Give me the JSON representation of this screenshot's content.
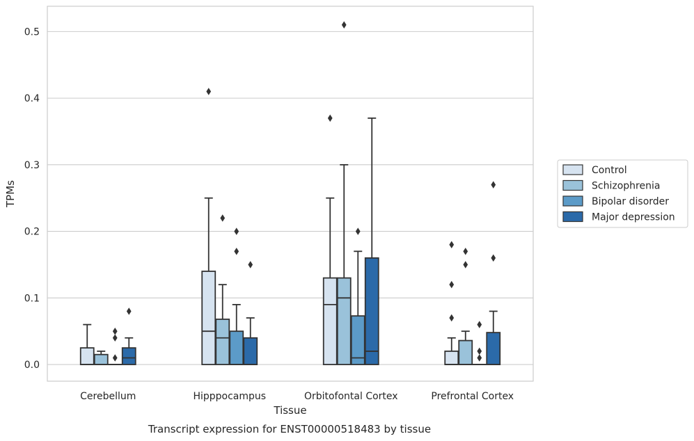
{
  "chart_data": {
    "type": "box",
    "title": "",
    "caption": "Transcript expression for ENST00000518483 by tissue",
    "xlabel": "Tissue",
    "ylabel": "TPMs",
    "ylim": [
      -0.025,
      0.538
    ],
    "yticks": [
      0.0,
      0.1,
      0.2,
      0.3,
      0.4,
      0.5
    ],
    "ytick_labels": [
      "0.0",
      "0.1",
      "0.2",
      "0.3",
      "0.4",
      "0.5"
    ],
    "grid": "horizontal",
    "legend_position": "right",
    "categories": [
      "Cerebellum",
      "Hipppocampus",
      "Orbitofontal Cortex",
      "Prefrontal Cortex"
    ],
    "series": [
      {
        "name": "Control",
        "color": "#d6e3f0",
        "boxes": [
          {
            "whisker_low": 0.0,
            "q1": 0.0,
            "median": 0.0,
            "q3": 0.025,
            "whisker_high": 0.06,
            "outliers": []
          },
          {
            "whisker_low": 0.0,
            "q1": 0.0,
            "median": 0.05,
            "q3": 0.14,
            "whisker_high": 0.25,
            "outliers": [
              0.41
            ]
          },
          {
            "whisker_low": 0.0,
            "q1": 0.0,
            "median": 0.09,
            "q3": 0.13,
            "whisker_high": 0.25,
            "outliers": [
              0.37
            ]
          },
          {
            "whisker_low": 0.0,
            "q1": 0.0,
            "median": 0.0,
            "q3": 0.02,
            "whisker_high": 0.04,
            "outliers": [
              0.07,
              0.12,
              0.18
            ]
          }
        ]
      },
      {
        "name": "Schizophrenia",
        "color": "#9ac2da",
        "boxes": [
          {
            "whisker_low": 0.0,
            "q1": 0.0,
            "median": 0.0,
            "q3": 0.015,
            "whisker_high": 0.02,
            "outliers": []
          },
          {
            "whisker_low": 0.0,
            "q1": 0.0,
            "median": 0.04,
            "q3": 0.068,
            "whisker_high": 0.12,
            "outliers": [
              0.22
            ]
          },
          {
            "whisker_low": 0.0,
            "q1": 0.0,
            "median": 0.1,
            "q3": 0.13,
            "whisker_high": 0.3,
            "outliers": [
              0.51
            ]
          },
          {
            "whisker_low": 0.0,
            "q1": 0.0,
            "median": 0.0,
            "q3": 0.036,
            "whisker_high": 0.05,
            "outliers": [
              0.15,
              0.17
            ]
          }
        ]
      },
      {
        "name": "Bipolar disorder",
        "color": "#5c9bc8",
        "boxes": [
          {
            "whisker_low": 0.0,
            "q1": 0.0,
            "median": 0.0,
            "q3": 0.0,
            "whisker_high": 0.0,
            "outliers": [
              0.01,
              0.04,
              0.05
            ]
          },
          {
            "whisker_low": 0.0,
            "q1": 0.0,
            "median": 0.0,
            "q3": 0.05,
            "whisker_high": 0.09,
            "outliers": [
              0.17,
              0.2
            ]
          },
          {
            "whisker_low": 0.0,
            "q1": 0.0,
            "median": 0.01,
            "q3": 0.073,
            "whisker_high": 0.17,
            "outliers": [
              0.2
            ]
          },
          {
            "whisker_low": 0.0,
            "q1": 0.0,
            "median": 0.0,
            "q3": 0.0,
            "whisker_high": 0.0,
            "outliers": [
              0.01,
              0.02,
              0.06
            ]
          }
        ]
      },
      {
        "name": "Major depression",
        "color": "#2b6aa9",
        "boxes": [
          {
            "whisker_low": 0.0,
            "q1": 0.0,
            "median": 0.01,
            "q3": 0.025,
            "whisker_high": 0.04,
            "outliers": [
              0.08
            ]
          },
          {
            "whisker_low": 0.0,
            "q1": 0.0,
            "median": 0.0,
            "q3": 0.04,
            "whisker_high": 0.07,
            "outliers": [
              0.15
            ]
          },
          {
            "whisker_low": 0.0,
            "q1": 0.0,
            "median": 0.02,
            "q3": 0.16,
            "whisker_high": 0.37,
            "outliers": []
          },
          {
            "whisker_low": 0.0,
            "q1": 0.0,
            "median": 0.0,
            "q3": 0.048,
            "whisker_high": 0.08,
            "outliers": [
              0.16,
              0.27
            ]
          }
        ]
      }
    ]
  }
}
